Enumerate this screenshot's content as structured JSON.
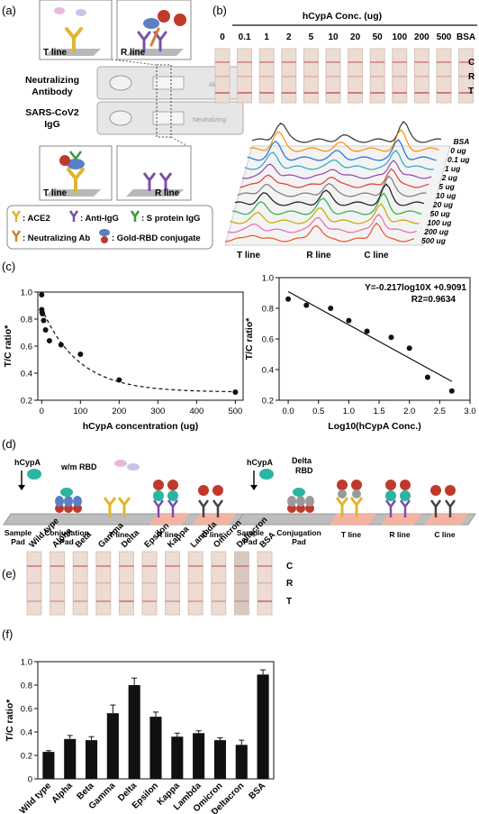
{
  "panels": {
    "a": "(a)",
    "b": "(b)",
    "c": "(c)",
    "d": "(d)",
    "e": "(e)",
    "f": "(f)"
  },
  "panel_a": {
    "t_line": "T line",
    "r_line": "R line",
    "row1": [
      "Neutralizing",
      "Antibody"
    ],
    "row2": [
      "SARS-CoV2",
      "IgG"
    ],
    "cassette_label": "Ab",
    "cassette_label2": "Neutralizing",
    "legend": {
      "ace2": ": ACE2",
      "anti_igg": ": Anti-IgG",
      "s_protein": ": S protein IgG",
      "neut_ab": ": Neutralizing Ab",
      "gold_rbd": ": Gold-RBD conjugate"
    }
  },
  "panel_b": {
    "title": "hCypA Conc. (ug)",
    "concs": [
      "0",
      "0.1",
      "1",
      "2",
      "5",
      "10",
      "20",
      "50",
      "100",
      "200",
      "500",
      "BSA"
    ],
    "side": [
      "C",
      "R",
      "T"
    ],
    "waterfall_labels": [
      "BSA",
      "0 ug",
      "0.1 ug",
      "1 ug",
      "2 ug",
      "5 ug",
      "10 ug",
      "20 ug",
      "50 ug",
      "100 ug",
      "200 ug",
      "500 ug"
    ],
    "axis": [
      "T line",
      "R line",
      "C line"
    ]
  },
  "chart_data": [
    {
      "type": "scatter",
      "xlabel": "hCypA concentration (ug)",
      "ylabel": "T/C ratio*",
      "xlim": [
        -10,
        520
      ],
      "ylim": [
        0.2,
        1.0
      ],
      "xticks": [
        "0",
        "100",
        "200",
        "300",
        "400",
        "500"
      ],
      "yticks": [
        "0.2",
        "0.4",
        "0.6",
        "0.8",
        "1.0"
      ],
      "x": [
        0,
        0.1,
        1,
        2,
        5,
        10,
        20,
        50,
        100,
        200,
        500
      ],
      "y": [
        0.98,
        0.87,
        0.85,
        0.84,
        0.79,
        0.72,
        0.64,
        0.61,
        0.54,
        0.35,
        0.26
      ],
      "fit": "dashed"
    },
    {
      "type": "scatter",
      "xlabel": "Log10(hCypA Conc.)",
      "ylabel": "T/C ratio*",
      "xlim": [
        -0.15,
        3.0
      ],
      "ylim": [
        0.2,
        1.0
      ],
      "xticks": [
        "0.0",
        "0.5",
        "1.0",
        "1.5",
        "2.0",
        "2.5",
        "3.0"
      ],
      "yticks": [
        "0.2",
        "0.4",
        "0.6",
        "0.8",
        "1.0"
      ],
      "x": [
        0.0,
        0.3,
        0.7,
        1.0,
        1.3,
        1.7,
        2.0,
        2.3,
        2.7
      ],
      "y": [
        0.86,
        0.82,
        0.8,
        0.72,
        0.65,
        0.61,
        0.54,
        0.35,
        0.26
      ],
      "equation": "Y=-0.217log10X +0.9091",
      "r2": "R2=0.9634",
      "fit": [
        [
          0.0,
          0.909
        ],
        [
          2.7,
          0.323
        ]
      ]
    },
    {
      "type": "bar",
      "xlabel": "",
      "ylabel": "T/C ratio*",
      "ylim": [
        0,
        1.0
      ],
      "yticks": [
        "0",
        "0.2",
        "0.4",
        "0.6",
        "0.8",
        "1.0"
      ],
      "categories": [
        "Wild type",
        "Alpha",
        "Beta",
        "Gamma",
        "Delta",
        "Epsilon",
        "Kappa",
        "Lambda",
        "Omicron",
        "Deltacron",
        "BSA"
      ],
      "values": [
        0.23,
        0.34,
        0.33,
        0.56,
        0.8,
        0.53,
        0.36,
        0.39,
        0.33,
        0.29,
        0.89
      ],
      "errors": [
        0.01,
        0.03,
        0.03,
        0.07,
        0.06,
        0.04,
        0.03,
        0.02,
        0.02,
        0.04,
        0.04
      ]
    }
  ],
  "panel_d": {
    "hcypa": "hCypA",
    "wm_rbd": "w/m RBD",
    "delta_rbd": [
      "Delta",
      "RBD"
    ],
    "sample_pad": [
      "Sample",
      "Pad"
    ],
    "conj_pad": [
      "Conjugation",
      "Pad"
    ],
    "t_line": "T line",
    "r_line": "R line",
    "c_line": "C line"
  },
  "panel_e": {
    "variants": [
      "Wild type",
      "Alpha",
      "Beta",
      "Gamma",
      "Delta",
      "Epsilon",
      "Kappa",
      "Lambda",
      "Omicron",
      "Deltacron",
      "BSA"
    ],
    "side": [
      "C",
      "R",
      "T"
    ]
  },
  "colors": {
    "strip_bg": "#ecdcd2",
    "band": "#c55a6e",
    "gold": "#c0392b",
    "teal": "#2bb5a0",
    "bar": "#111111"
  }
}
